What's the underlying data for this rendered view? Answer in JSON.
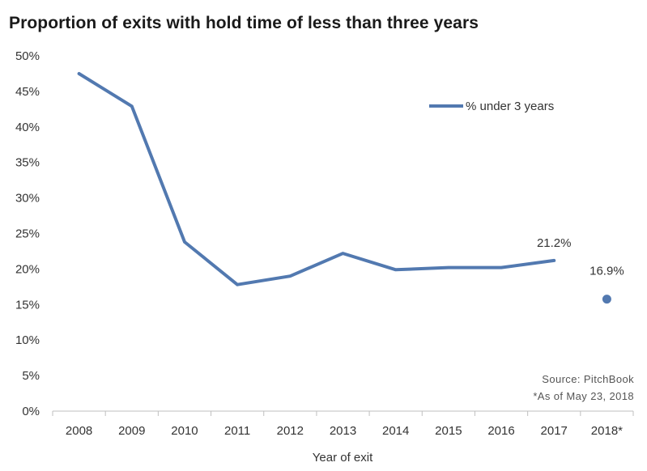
{
  "chart_data": {
    "type": "line",
    "title": "Proportion of exits with hold time of less than three years",
    "xlabel": "Year of exit",
    "ylabel": "",
    "categories": [
      "2008",
      "2009",
      "2010",
      "2011",
      "2012",
      "2013",
      "2014",
      "2015",
      "2016",
      "2017",
      "2018*"
    ],
    "ylim": [
      0,
      50
    ],
    "yticks": [
      "0%",
      "5%",
      "10%",
      "15%",
      "20%",
      "25%",
      "30%",
      "35%",
      "40%",
      "45%",
      "50%"
    ],
    "grid": false,
    "legend_position": "top-right",
    "series": [
      {
        "name": "% under 3 years",
        "values": [
          47.5,
          42.9,
          23.8,
          17.8,
          19.0,
          22.2,
          19.9,
          20.2,
          20.2,
          21.2,
          null
        ],
        "color": "#5279b0"
      }
    ],
    "highlight_point": {
      "category": "2018*",
      "value": 16.9,
      "color": "#5279b0"
    },
    "data_labels": [
      {
        "category": "2017",
        "text": "21.2%"
      },
      {
        "category": "2018*",
        "text": "16.9%"
      }
    ],
    "notes": [
      "Source: PitchBook",
      "*As of May 23, 2018"
    ]
  }
}
